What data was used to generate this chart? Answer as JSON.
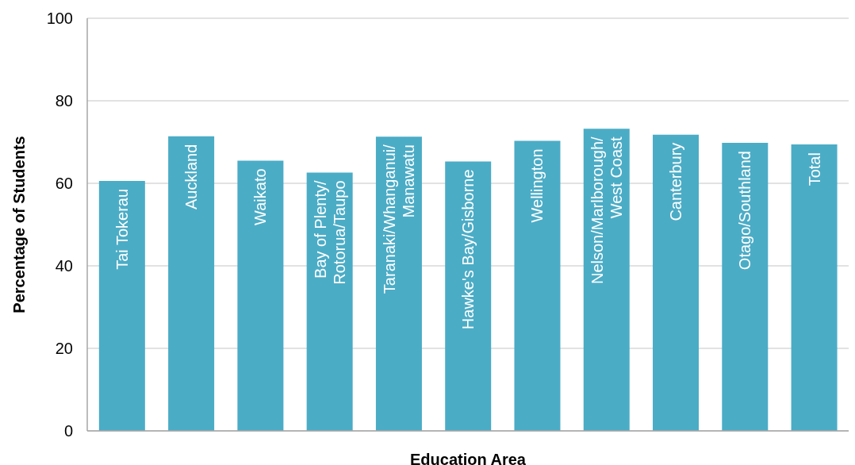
{
  "chart_data": {
    "type": "bar",
    "xlabel": "Education Area",
    "ylabel": "Percentage of Students",
    "categories": [
      "Tai Tokerau",
      "Auckland",
      "Waikato",
      "Bay of Plenty/\nRotorua/Taupo",
      "Taranaki/Whanganui/\nManawatu",
      "Hawke's Bay/Gisborne",
      "Wellington",
      "Nelson/Marlborough/\nWest Coast",
      "Canterbury",
      "Otago/Southland",
      "Total"
    ],
    "values": [
      60.6,
      71.4,
      65.5,
      62.6,
      71.3,
      65.3,
      70.3,
      73.2,
      71.8,
      69.8,
      69.4
    ],
    "color": "#4bacc6",
    "ylim": [
      0,
      100
    ],
    "yticks": [
      0,
      20,
      40,
      60,
      80,
      100
    ],
    "grid": "y"
  }
}
